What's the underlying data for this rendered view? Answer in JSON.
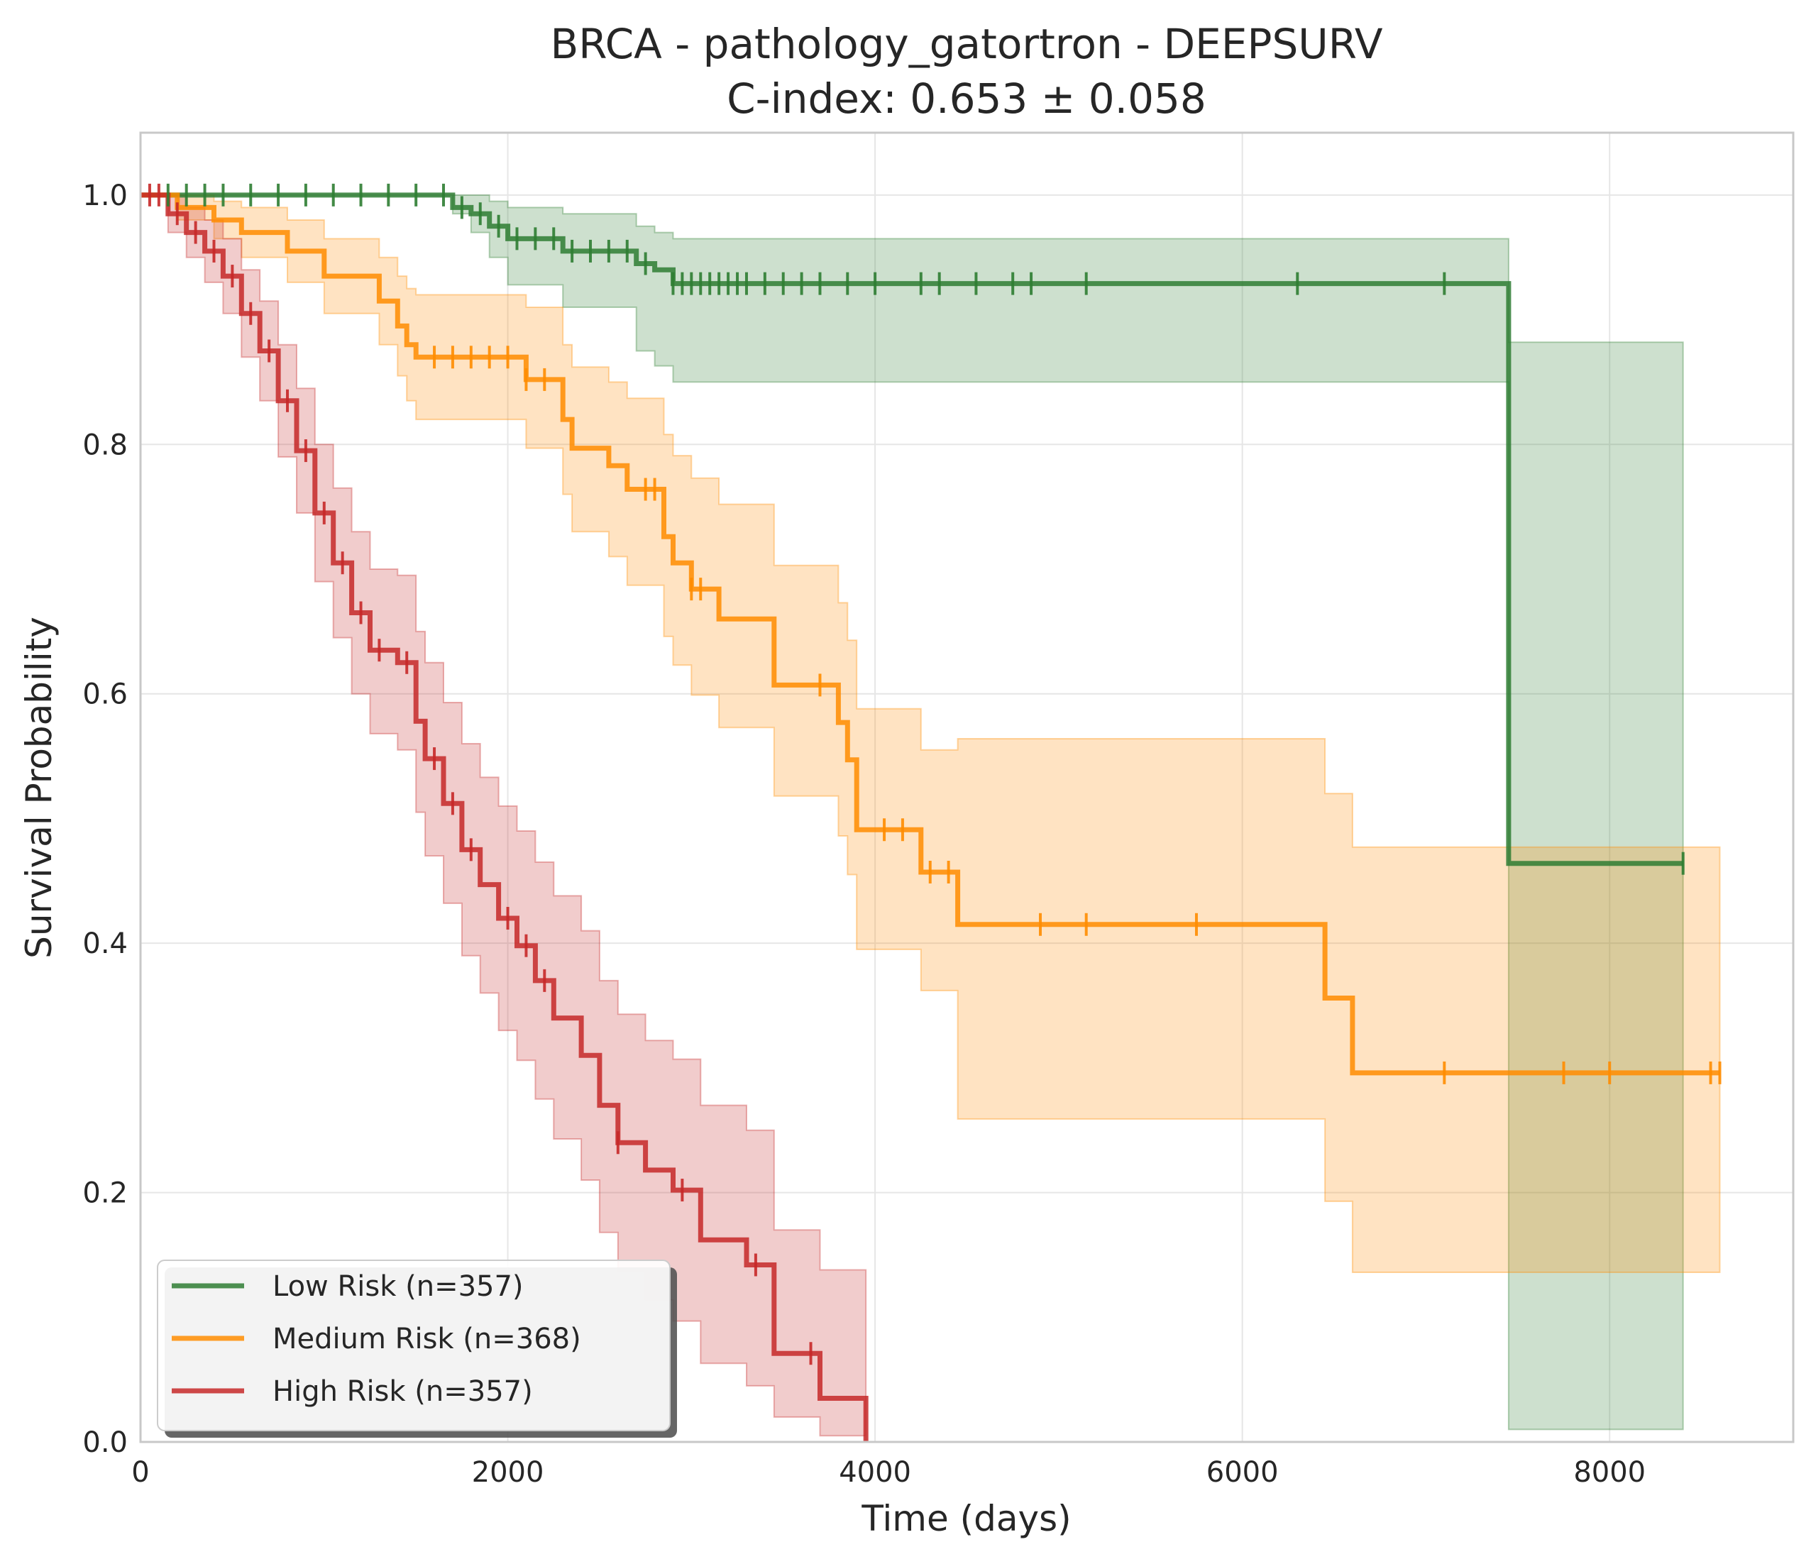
{
  "chart_data": {
    "type": "line",
    "subtype": "kaplan-meier",
    "title": "BRCA - pathology_gatortron - DEEPSURV",
    "subtitle": "C-index: 0.653 ± 0.058",
    "xlabel": "Time (days)",
    "ylabel": "Survival Probability",
    "xlim": [
      0,
      9000
    ],
    "ylim": [
      0,
      1.05
    ],
    "x_ticks": [
      0,
      2000,
      4000,
      6000,
      8000
    ],
    "x_tick_labels": [
      "0",
      "2000",
      "4000",
      "6000",
      "8000"
    ],
    "y_ticks": [
      0,
      0.2,
      0.4,
      0.6,
      0.8,
      1.0
    ],
    "y_tick_labels": [
      "0.0",
      "0.2",
      "0.4",
      "0.6",
      "0.8",
      "1.0"
    ],
    "grid": true,
    "legend_position": "lower-left",
    "series": [
      {
        "name": "Low Risk (n=357)",
        "color": "#2e7d32",
        "x": [
          0,
          1700,
          1800,
          1900,
          2000,
          2300,
          2700,
          2800,
          2900,
          7450,
          8400
        ],
        "y": [
          1.0,
          0.99,
          0.985,
          0.975,
          0.965,
          0.955,
          0.945,
          0.94,
          0.929,
          0.464,
          0.464
        ],
        "ci_lower": [
          1.0,
          0.985,
          0.97,
          0.95,
          0.928,
          0.91,
          0.875,
          0.863,
          0.85,
          0.01,
          0.01
        ],
        "ci_upper": [
          1.0,
          1.0,
          1.0,
          0.995,
          0.99,
          0.985,
          0.975,
          0.97,
          0.965,
          0.882,
          0.882
        ],
        "censor_x": [
          150,
          250,
          350,
          450,
          600,
          750,
          900,
          1050,
          1200,
          1350,
          1500,
          1650,
          1750,
          1850,
          1950,
          2050,
          2150,
          2250,
          2350,
          2450,
          2550,
          2650,
          2750,
          2900,
          2950,
          3000,
          3050,
          3100,
          3150,
          3200,
          3250,
          3300,
          3400,
          3500,
          3600,
          3700,
          3850,
          4000,
          4250,
          4350,
          4550,
          4750,
          4850,
          5150,
          6300,
          7100,
          8400
        ]
      },
      {
        "name": "Medium Risk (n=368)",
        "color": "#ff8c00",
        "x": [
          0,
          200,
          400,
          550,
          800,
          1000,
          1300,
          1400,
          1450,
          1500,
          2100,
          2300,
          2350,
          2550,
          2650,
          2850,
          2900,
          3000,
          3150,
          3450,
          3800,
          3850,
          3900,
          4250,
          4450,
          6450,
          6600,
          8600
        ],
        "y": [
          1.0,
          0.99,
          0.98,
          0.97,
          0.955,
          0.935,
          0.915,
          0.895,
          0.88,
          0.87,
          0.852,
          0.82,
          0.797,
          0.783,
          0.764,
          0.726,
          0.705,
          0.684,
          0.66,
          0.607,
          0.577,
          0.547,
          0.491,
          0.457,
          0.415,
          0.356,
          0.296,
          0.296
        ],
        "ci_lower": [
          1.0,
          0.98,
          0.965,
          0.95,
          0.93,
          0.905,
          0.88,
          0.855,
          0.835,
          0.82,
          0.797,
          0.76,
          0.73,
          0.71,
          0.687,
          0.646,
          0.623,
          0.599,
          0.573,
          0.518,
          0.486,
          0.455,
          0.395,
          0.362,
          0.259,
          0.193,
          0.136,
          0.136
        ],
        "ci_upper": [
          1.0,
          1.0,
          0.995,
          0.99,
          0.98,
          0.965,
          0.95,
          0.935,
          0.925,
          0.92,
          0.91,
          0.88,
          0.862,
          0.85,
          0.837,
          0.808,
          0.791,
          0.773,
          0.752,
          0.703,
          0.673,
          0.643,
          0.588,
          0.555,
          0.564,
          0.52,
          0.477,
          0.477
        ],
        "censor_x": [
          1600,
          1700,
          1800,
          1900,
          2000,
          2100,
          2200,
          2750,
          2800,
          3000,
          3050,
          3700,
          4050,
          4150,
          4300,
          4400,
          4900,
          5150,
          5750,
          7100,
          7750,
          8000,
          8550,
          8600
        ]
      },
      {
        "name": "High Risk (n=357)",
        "color": "#c62828",
        "x": [
          0,
          150,
          250,
          350,
          450,
          550,
          650,
          750,
          850,
          950,
          1050,
          1150,
          1250,
          1400,
          1500,
          1550,
          1650,
          1750,
          1850,
          1950,
          2050,
          2150,
          2250,
          2400,
          2500,
          2600,
          2750,
          2900,
          3050,
          3300,
          3450,
          3700,
          3950
        ],
        "y": [
          1.0,
          0.985,
          0.97,
          0.955,
          0.935,
          0.905,
          0.875,
          0.835,
          0.795,
          0.745,
          0.705,
          0.665,
          0.635,
          0.625,
          0.578,
          0.548,
          0.512,
          0.475,
          0.447,
          0.42,
          0.398,
          0.37,
          0.34,
          0.31,
          0.27,
          0.24,
          0.218,
          0.202,
          0.162,
          0.142,
          0.071,
          0.035,
          0.0
        ],
        "ci_lower": [
          1.0,
          0.97,
          0.95,
          0.93,
          0.905,
          0.87,
          0.835,
          0.79,
          0.745,
          0.69,
          0.645,
          0.6,
          0.568,
          0.555,
          0.505,
          0.47,
          0.432,
          0.39,
          0.36,
          0.33,
          0.306,
          0.275,
          0.243,
          0.21,
          0.168,
          0.137,
          0.114,
          0.097,
          0.063,
          0.045,
          0.02,
          0.005,
          0.0
        ],
        "ci_upper": [
          1.0,
          1.0,
          0.99,
          0.98,
          0.965,
          0.94,
          0.915,
          0.88,
          0.845,
          0.8,
          0.765,
          0.73,
          0.7,
          0.695,
          0.65,
          0.625,
          0.593,
          0.56,
          0.533,
          0.51,
          0.49,
          0.465,
          0.438,
          0.41,
          0.37,
          0.343,
          0.322,
          0.307,
          0.27,
          0.25,
          0.17,
          0.138,
          0.138
        ],
        "censor_x": [
          50,
          100,
          200,
          300,
          400,
          500,
          600,
          700,
          800,
          900,
          1000,
          1100,
          1200,
          1300,
          1450,
          1600,
          1700,
          1800,
          2000,
          2100,
          2200,
          2600,
          2950,
          3350,
          3650
        ]
      }
    ]
  }
}
